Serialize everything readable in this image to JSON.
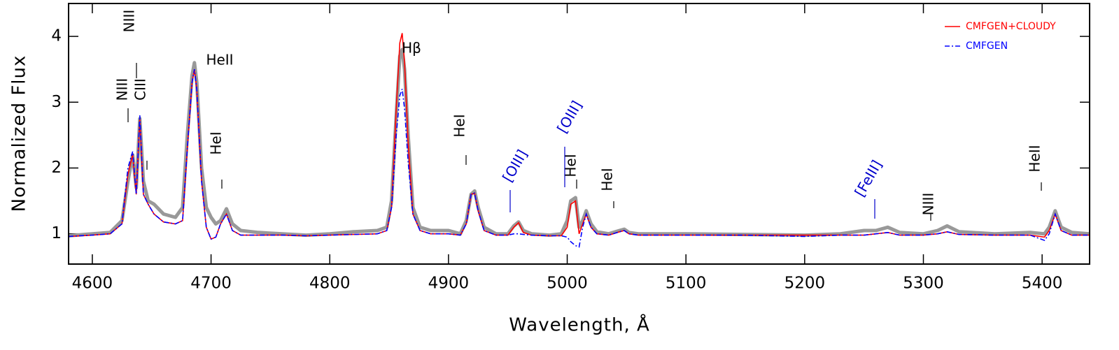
{
  "chart_data": {
    "type": "line",
    "x_label": "Wavelength, Å",
    "y_label": "Normalized Flux",
    "xlim": [
      4580,
      5440
    ],
    "ylim": [
      0.54,
      4.5
    ],
    "xticks": [
      4600,
      4700,
      4800,
      4900,
      5000,
      5100,
      5200,
      5300,
      5400
    ],
    "yticks": [
      1,
      2,
      3,
      4
    ],
    "legend": "upper right",
    "x": [
      4580,
      4600,
      4615,
      4625,
      4630,
      4634,
      4637,
      4640,
      4643,
      4647,
      4652,
      4660,
      4670,
      4676,
      4680,
      4684,
      4686,
      4688,
      4692,
      4696,
      4700,
      4704,
      4708,
      4713,
      4718,
      4725,
      4740,
      4760,
      4780,
      4800,
      4820,
      4840,
      4848,
      4852,
      4856,
      4859,
      4861,
      4863,
      4866,
      4870,
      4876,
      4885,
      4900,
      4910,
      4915,
      4919,
      4922,
      4925,
      4930,
      4940,
      4950,
      4955,
      4959,
      4963,
      4970,
      4985,
      4995,
      5000,
      5003,
      5007,
      5010,
      5013,
      5016,
      5020,
      5025,
      5035,
      5044,
      5048,
      5052,
      5060,
      5080,
      5100,
      5150,
      5200,
      5230,
      5250,
      5260,
      5270,
      5280,
      5300,
      5312,
      5320,
      5330,
      5360,
      5390,
      5402,
      5406,
      5411,
      5416,
      5425,
      5440
    ],
    "observed": {
      "color": "#999999",
      "values": [
        0.97,
        1.0,
        1.02,
        1.2,
        1.8,
        2.2,
        1.7,
        2.75,
        1.8,
        1.5,
        1.45,
        1.3,
        1.25,
        1.4,
        2.5,
        3.4,
        3.6,
        3.3,
        2.0,
        1.4,
        1.25,
        1.15,
        1.2,
        1.38,
        1.15,
        1.05,
        1.02,
        1.0,
        0.98,
        1.0,
        1.03,
        1.05,
        1.1,
        1.5,
        2.8,
        3.7,
        3.8,
        3.5,
        2.5,
        1.4,
        1.1,
        1.05,
        1.05,
        1.0,
        1.2,
        1.6,
        1.65,
        1.4,
        1.1,
        1.0,
        1.0,
        1.12,
        1.18,
        1.05,
        1.0,
        0.98,
        1.0,
        1.2,
        1.5,
        1.55,
        1.1,
        1.2,
        1.35,
        1.15,
        1.03,
        1.0,
        1.05,
        1.07,
        1.02,
        1.0,
        1.0,
        1.0,
        0.99,
        0.98,
        1.0,
        1.05,
        1.05,
        1.1,
        1.02,
        1.0,
        1.05,
        1.12,
        1.03,
        1.0,
        1.02,
        1.0,
        1.1,
        1.35,
        1.1,
        1.02,
        1.0
      ]
    },
    "series": [
      {
        "name": "CMFGEN+CLOUDY",
        "color": "#ff0000",
        "dash": "solid",
        "values": [
          0.96,
          0.98,
          1.0,
          1.15,
          1.9,
          2.2,
          1.6,
          2.75,
          1.6,
          1.45,
          1.3,
          1.18,
          1.15,
          1.2,
          2.3,
          3.3,
          3.5,
          3.2,
          1.8,
          1.1,
          0.92,
          0.95,
          1.15,
          1.3,
          1.05,
          0.98,
          0.98,
          0.98,
          0.97,
          0.98,
          0.99,
          1.0,
          1.05,
          1.4,
          2.9,
          3.9,
          4.05,
          3.6,
          2.4,
          1.3,
          1.05,
          1.0,
          1.0,
          0.98,
          1.15,
          1.6,
          1.62,
          1.35,
          1.05,
          0.98,
          0.98,
          1.1,
          1.17,
          1.02,
          0.98,
          0.97,
          0.97,
          1.1,
          1.45,
          1.5,
          1.0,
          1.15,
          1.3,
          1.1,
          1.0,
          0.98,
          1.03,
          1.05,
          1.0,
          0.98,
          0.98,
          0.98,
          0.98,
          0.98,
          0.98,
          0.98,
          1.0,
          1.02,
          0.98,
          0.98,
          1.0,
          1.03,
          0.99,
          0.98,
          0.98,
          0.95,
          1.05,
          1.3,
          1.05,
          0.98,
          0.98
        ]
      },
      {
        "name": "CMFGEN",
        "color": "#0000ff",
        "dash": "dashdot",
        "values": [
          0.96,
          0.98,
          1.0,
          1.15,
          2.0,
          2.25,
          1.6,
          2.8,
          1.6,
          1.45,
          1.3,
          1.18,
          1.15,
          1.2,
          2.3,
          3.3,
          3.5,
          3.2,
          1.8,
          1.1,
          0.92,
          0.95,
          1.15,
          1.3,
          1.05,
          0.98,
          0.98,
          0.98,
          0.97,
          0.98,
          0.99,
          1.0,
          1.05,
          1.4,
          2.5,
          3.1,
          3.2,
          2.9,
          2.1,
          1.3,
          1.05,
          1.0,
          1.0,
          0.98,
          1.15,
          1.6,
          1.62,
          1.35,
          1.05,
          0.98,
          0.98,
          1.0,
          1.0,
          0.99,
          0.98,
          0.97,
          0.97,
          0.95,
          0.88,
          0.82,
          0.8,
          1.1,
          1.3,
          1.1,
          1.0,
          0.98,
          1.03,
          1.05,
          1.0,
          0.98,
          0.98,
          0.98,
          0.98,
          0.96,
          0.98,
          0.98,
          1.0,
          1.02,
          0.98,
          0.98,
          1.0,
          1.03,
          0.99,
          0.98,
          0.98,
          0.9,
          1.0,
          1.3,
          1.05,
          0.98,
          0.98
        ]
      }
    ],
    "annotations": [
      {
        "text": "NIII",
        "color": "#000000"
      },
      {
        "text": "NIII",
        "color": "#000000"
      },
      {
        "text": "CIII",
        "color": "#000000"
      },
      {
        "text": "HeII",
        "color": "#000000"
      },
      {
        "text": "HeI",
        "color": "#000000"
      },
      {
        "text": "Hβ",
        "color": "#000000"
      },
      {
        "text": "HeI",
        "color": "#000000"
      },
      {
        "text": "[OIII]",
        "color": "#0000cc"
      },
      {
        "text": "[OIII]",
        "color": "#0000cc"
      },
      {
        "text": "HeI",
        "color": "#000000"
      },
      {
        "text": "HeI",
        "color": "#000000"
      },
      {
        "text": "[FeIII]",
        "color": "#0000cc"
      },
      {
        "text": "NIII",
        "color": "#000000"
      },
      {
        "text": "HeII",
        "color": "#000000"
      }
    ]
  }
}
